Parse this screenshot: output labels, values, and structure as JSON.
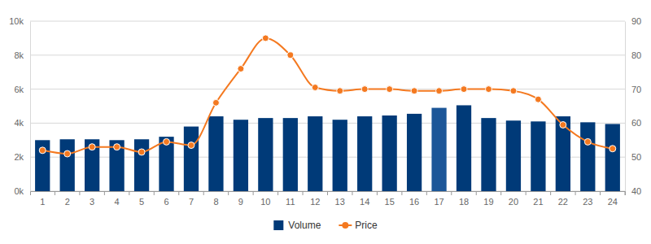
{
  "chart_data": {
    "type": "bar",
    "categories": [
      "1",
      "2",
      "3",
      "4",
      "5",
      "6",
      "7",
      "8",
      "9",
      "10",
      "11",
      "12",
      "13",
      "14",
      "15",
      "16",
      "17",
      "18",
      "19",
      "20",
      "21",
      "22",
      "23",
      "24"
    ],
    "series": [
      {
        "name": "Volume",
        "type": "bar",
        "color": "#003a78",
        "colors": [
          "#003a78",
          "#003a78",
          "#003a78",
          "#003a78",
          "#003a78",
          "#003a78",
          "#003a78",
          "#003a78",
          "#003a78",
          "#003a78",
          "#003a78",
          "#003a78",
          "#003a78",
          "#003a78",
          "#003a78",
          "#003a78",
          "#1c5698",
          "#003a78",
          "#003a78",
          "#003a78",
          "#003a78",
          "#003a78",
          "#003a78",
          "#003a78"
        ],
        "values": [
          3000,
          3050,
          3050,
          3000,
          3050,
          3200,
          3800,
          4400,
          4200,
          4300,
          4300,
          4400,
          4200,
          4400,
          4450,
          4550,
          4900,
          5050,
          4300,
          4150,
          4100,
          4400,
          4050,
          3950
        ]
      },
      {
        "name": "Price",
        "type": "line",
        "color": "#f47920",
        "marker": "circle",
        "axis": "y2",
        "values": [
          52,
          51,
          53,
          53,
          51.5,
          54.5,
          53.5,
          66,
          76,
          85,
          80,
          70.5,
          69.5,
          70,
          70,
          69.5,
          69.5,
          70,
          70,
          69.5,
          67,
          59.5,
          54.5,
          52.5
        ]
      }
    ],
    "ylim": [
      0,
      10000
    ],
    "yticks": [
      {
        "value": 0,
        "label": "0k"
      },
      {
        "value": 2000,
        "label": "2k"
      },
      {
        "value": 4000,
        "label": "4k"
      },
      {
        "value": 6000,
        "label": "6k"
      },
      {
        "value": 8000,
        "label": "8k"
      },
      {
        "value": 10000,
        "label": "10k"
      }
    ],
    "y2lim": [
      40,
      90
    ],
    "y2ticks": [
      40,
      50,
      60,
      70,
      80,
      90
    ],
    "grid": true,
    "legend": "bottom"
  }
}
